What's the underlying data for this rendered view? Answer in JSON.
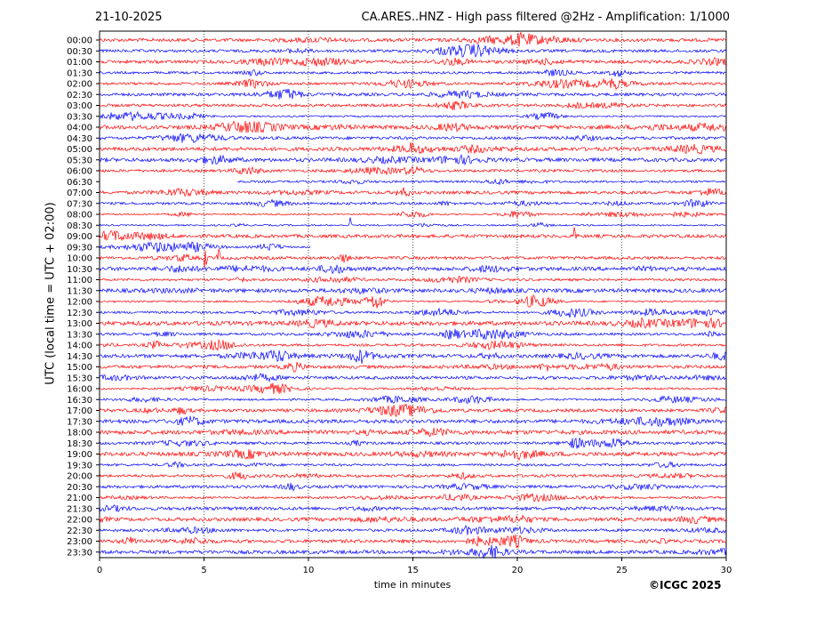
{
  "header": {
    "date": "21-10-2025",
    "title": "CA.ARES..HNZ - High pass filtered @2Hz - Amplification: 1/1000"
  },
  "footer": {
    "copyright": "©ICGC 2025"
  },
  "colors": {
    "even_rows": "#ff0000",
    "odd_rows": "#0000ff",
    "grid": "#000000"
  },
  "chart_data": {
    "type": "line",
    "title": "CA.ARES..HNZ - High pass filtered @2Hz - Amplification: 1/1000",
    "xlabel": "time in minutes",
    "ylabel": "UTC (local time = UTC + 02:00)",
    "xlim": [
      0,
      30
    ],
    "xticks": [
      0,
      5,
      10,
      15,
      20,
      25,
      30
    ],
    "grid": "vertical dotted lines at 5-minute intervals",
    "row_labels": [
      "00:00",
      "00:30",
      "01:00",
      "01:30",
      "02:00",
      "02:30",
      "03:00",
      "03:30",
      "04:00",
      "04:30",
      "05:00",
      "05:30",
      "06:00",
      "06:30",
      "07:00",
      "07:30",
      "08:00",
      "08:30",
      "09:00",
      "09:30",
      "10:00",
      "10:30",
      "11:00",
      "11:30",
      "12:00",
      "12:30",
      "13:00",
      "13:30",
      "14:00",
      "14:30",
      "15:00",
      "15:30",
      "16:00",
      "16:30",
      "17:00",
      "17:30",
      "18:00",
      "18:30",
      "19:00",
      "19:30",
      "20:00",
      "20:30",
      "21:00",
      "21:30",
      "22:00",
      "22:30",
      "23:00",
      "23:30"
    ],
    "row_colors": "alternating red / blue starting with red at 00:00",
    "trace_extents_minutes": {
      "06:30": [
        6.6,
        30
      ],
      "09:30": [
        0,
        10.1
      ]
    },
    "notable_events": [
      {
        "row": "08:30",
        "minute": 12.0,
        "description": "spike"
      },
      {
        "row": "09:00",
        "minute": 22.8,
        "description": "spike"
      },
      {
        "row": "10:00",
        "minute": 5.1,
        "description": "spike"
      },
      {
        "row": "10:00",
        "minute": 5.7,
        "description": "spike"
      },
      {
        "row": "12:00",
        "minute": 13.3,
        "description": "burst"
      },
      {
        "row": "14:30",
        "minute": 12.5,
        "description": "burst"
      },
      {
        "row": "13:30",
        "minute": 16.9,
        "description": "burst"
      }
    ]
  }
}
